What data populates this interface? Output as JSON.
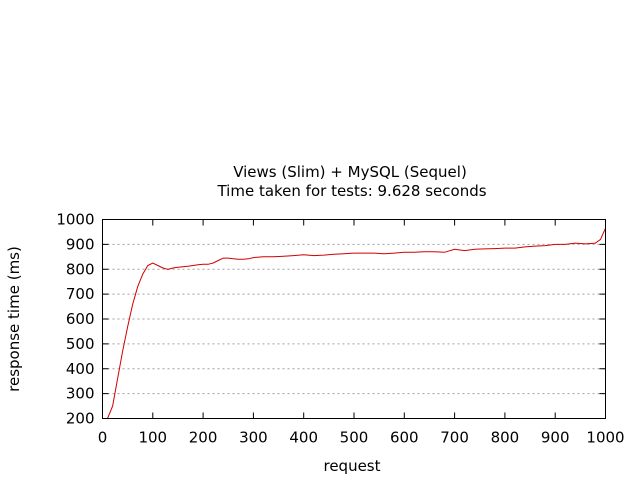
{
  "chart_data": {
    "type": "line",
    "title": "Views (Slim) + MySQL (Sequel)",
    "subtitle": "Time taken for tests: 9.628 seconds",
    "xlabel": "request",
    "ylabel": "response time (ms)",
    "xlim": [
      0,
      1000
    ],
    "ylim": [
      200,
      1000
    ],
    "xticks": [
      0,
      100,
      200,
      300,
      400,
      500,
      600,
      700,
      800,
      900,
      1000
    ],
    "yticks": [
      200,
      300,
      400,
      500,
      600,
      700,
      800,
      900,
      1000
    ],
    "grid": "horizontal dashed",
    "series": [
      {
        "color": "#d00000",
        "x": [
          0,
          10,
          20,
          30,
          40,
          50,
          60,
          70,
          80,
          90,
          100,
          110,
          120,
          130,
          140,
          150,
          160,
          170,
          180,
          190,
          200,
          210,
          220,
          230,
          240,
          250,
          260,
          270,
          280,
          290,
          300,
          320,
          340,
          360,
          380,
          400,
          420,
          440,
          460,
          480,
          500,
          520,
          540,
          560,
          580,
          600,
          620,
          640,
          660,
          680,
          700,
          720,
          740,
          760,
          780,
          800,
          820,
          840,
          860,
          880,
          900,
          920,
          940,
          960,
          980,
          990,
          1000
        ],
        "y": [
          200,
          200,
          250,
          360,
          470,
          570,
          660,
          730,
          780,
          815,
          825,
          815,
          805,
          800,
          805,
          808,
          810,
          812,
          815,
          818,
          820,
          820,
          825,
          835,
          845,
          845,
          842,
          840,
          840,
          842,
          847,
          850,
          850,
          852,
          855,
          858,
          855,
          857,
          860,
          862,
          865,
          865,
          865,
          862,
          865,
          868,
          868,
          870,
          870,
          868,
          880,
          875,
          880,
          882,
          883,
          885,
          885,
          890,
          893,
          895,
          900,
          900,
          905,
          902,
          905,
          920,
          965
        ]
      }
    ]
  }
}
